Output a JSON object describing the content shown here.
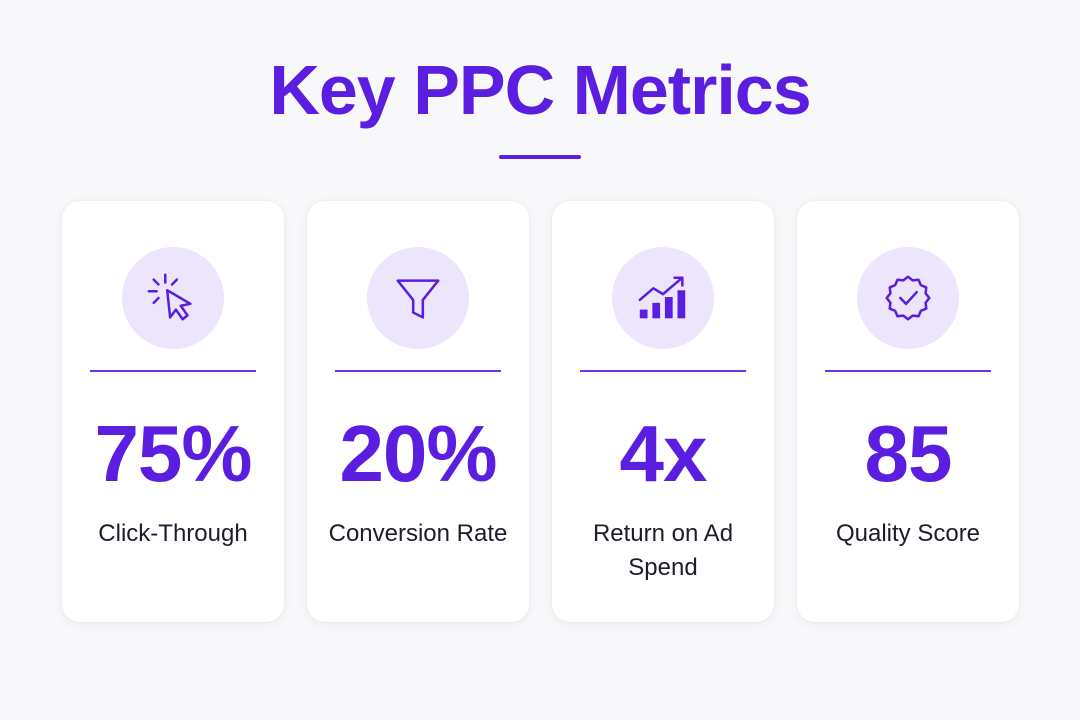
{
  "title": "Key PPC Metrics",
  "accent_color": "#5b1ee0",
  "icon_bg_color": "#ece5fb",
  "cards": [
    {
      "icon": "cursor-click-icon",
      "value": "75%",
      "label": "Click-Through"
    },
    {
      "icon": "funnel-icon",
      "value": "20%",
      "label": "Conversion Rate"
    },
    {
      "icon": "bar-chart-growth-icon",
      "value": "4x",
      "label": "Return on Ad Spend"
    },
    {
      "icon": "badge-check-icon",
      "value": "85",
      "label": "Quality Score"
    }
  ]
}
